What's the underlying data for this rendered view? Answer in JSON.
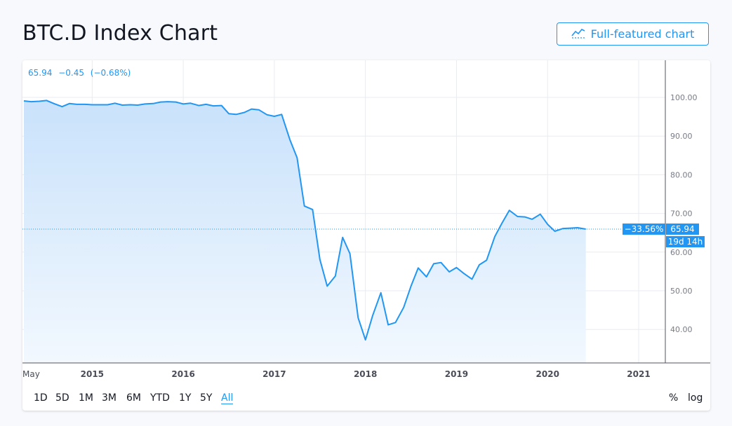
{
  "header": {
    "title": "BTC.D Index Chart",
    "full_chart_label": "Full-featured chart"
  },
  "legend": {
    "last": "65.94",
    "change": "−0.45",
    "change_pct": "(−0.68%)"
  },
  "labels": {
    "pct_change": "−33.56%",
    "last_price": "65.94",
    "countdown": "19d 14h"
  },
  "ranges": [
    "1D",
    "5D",
    "1M",
    "3M",
    "6M",
    "YTD",
    "1Y",
    "5Y",
    "All"
  ],
  "active_range": "All",
  "options": {
    "percent": "%",
    "log": "log"
  },
  "colors": {
    "line": "#2196f3",
    "label_bg": "#2196f3",
    "fill_top": "#c9e2fb",
    "fill_bottom": "#f2f8fe"
  },
  "chart_data": {
    "type": "area",
    "title": "BTC.D Index Chart",
    "x_tick_labels": [
      "May",
      "2015",
      "2016",
      "2017",
      "2018",
      "2019",
      "2020",
      "2021"
    ],
    "y_tick_labels": [
      "40.00",
      "50.00",
      "60.00",
      "70.00",
      "80.00",
      "90.00",
      "100.00"
    ],
    "ylim": [
      32,
      109
    ],
    "xlim": [
      2014.25,
      2021.35
    ],
    "series": [
      {
        "x": [
          2014.25,
          2014.33,
          2014.42,
          2014.5,
          2014.58,
          2014.67,
          2014.75,
          2014.83,
          2014.92,
          2015.0,
          2015.08,
          2015.17,
          2015.25,
          2015.33,
          2015.42,
          2015.5,
          2015.58,
          2015.67,
          2015.75,
          2015.83,
          2015.92,
          2016.0,
          2016.08,
          2016.17,
          2016.25,
          2016.33,
          2016.42,
          2016.5,
          2016.58,
          2016.67,
          2016.75,
          2016.83,
          2016.92,
          2017.0,
          2017.08,
          2017.17,
          2017.25,
          2017.33,
          2017.42,
          2017.5,
          2017.58,
          2017.67,
          2017.75,
          2017.83,
          2017.92,
          2018.0,
          2018.08,
          2018.17,
          2018.25,
          2018.33,
          2018.42,
          2018.5,
          2018.58,
          2018.67,
          2018.75,
          2018.83,
          2018.92,
          2019.0,
          2019.08,
          2019.17,
          2019.25,
          2019.33,
          2019.42,
          2019.5,
          2019.58,
          2019.67,
          2019.75,
          2019.83,
          2019.92,
          2020.0,
          2020.08,
          2020.17,
          2020.25,
          2020.33,
          2020.42
        ],
        "y": [
          99.1,
          98.9,
          99.0,
          99.2,
          98.4,
          97.6,
          98.4,
          98.2,
          98.2,
          98.1,
          98.1,
          98.1,
          98.5,
          98.0,
          98.1,
          98.0,
          98.3,
          98.4,
          98.8,
          98.9,
          98.8,
          98.3,
          98.5,
          97.9,
          98.2,
          97.8,
          97.9,
          95.8,
          95.6,
          96.1,
          97.0,
          96.8,
          95.5,
          95.1,
          95.6,
          89.1,
          84.4,
          71.9,
          71.0,
          58.1,
          51.2,
          53.8,
          63.8,
          59.6,
          43.0,
          37.3,
          43.6,
          49.5,
          41.2,
          41.8,
          45.7,
          51.2,
          55.9,
          53.6,
          57.0,
          57.3,
          54.9,
          56.0,
          54.5,
          53.0,
          56.7,
          57.9,
          64.0,
          67.5,
          70.8,
          69.2,
          69.1,
          68.5,
          69.8,
          67.2,
          65.4,
          66.1,
          66.2,
          66.3,
          65.94
        ]
      }
    ]
  }
}
